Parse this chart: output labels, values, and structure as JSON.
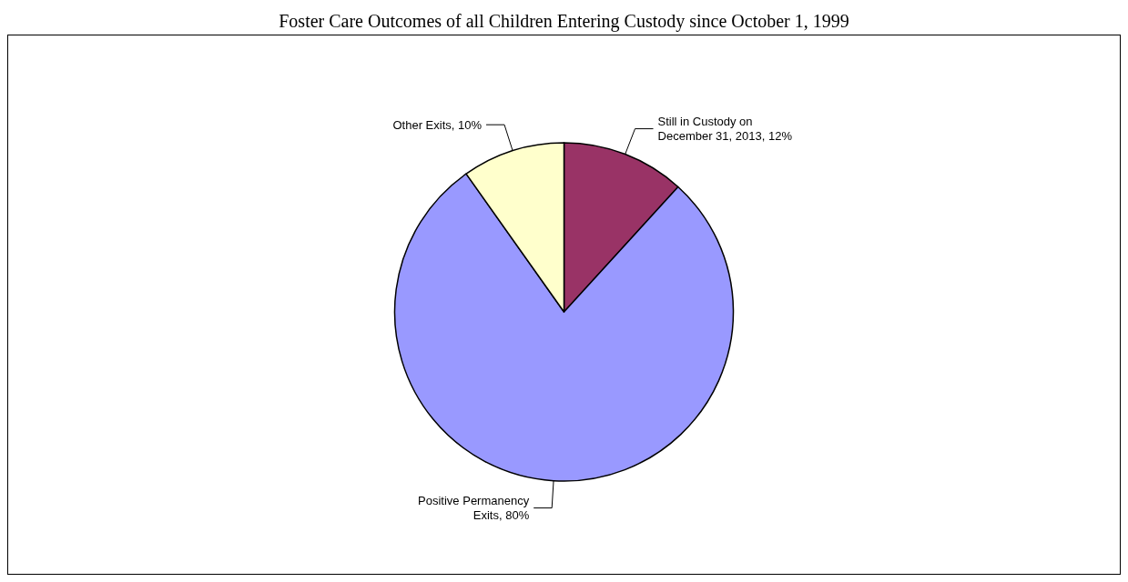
{
  "chart_data": {
    "type": "pie",
    "title": "Foster Care Outcomes of all Children Entering Custody since October 1, 1999",
    "categories": [
      "Still in Custody on December 31, 2013",
      "Positive Permanency Exits",
      "Other Exits"
    ],
    "values": [
      12,
      80,
      10
    ],
    "colors": [
      "#993366",
      "#9999ff",
      "#ffffcc"
    ],
    "value_labels": [
      "12%",
      "80%",
      "10%"
    ],
    "legend": false
  }
}
